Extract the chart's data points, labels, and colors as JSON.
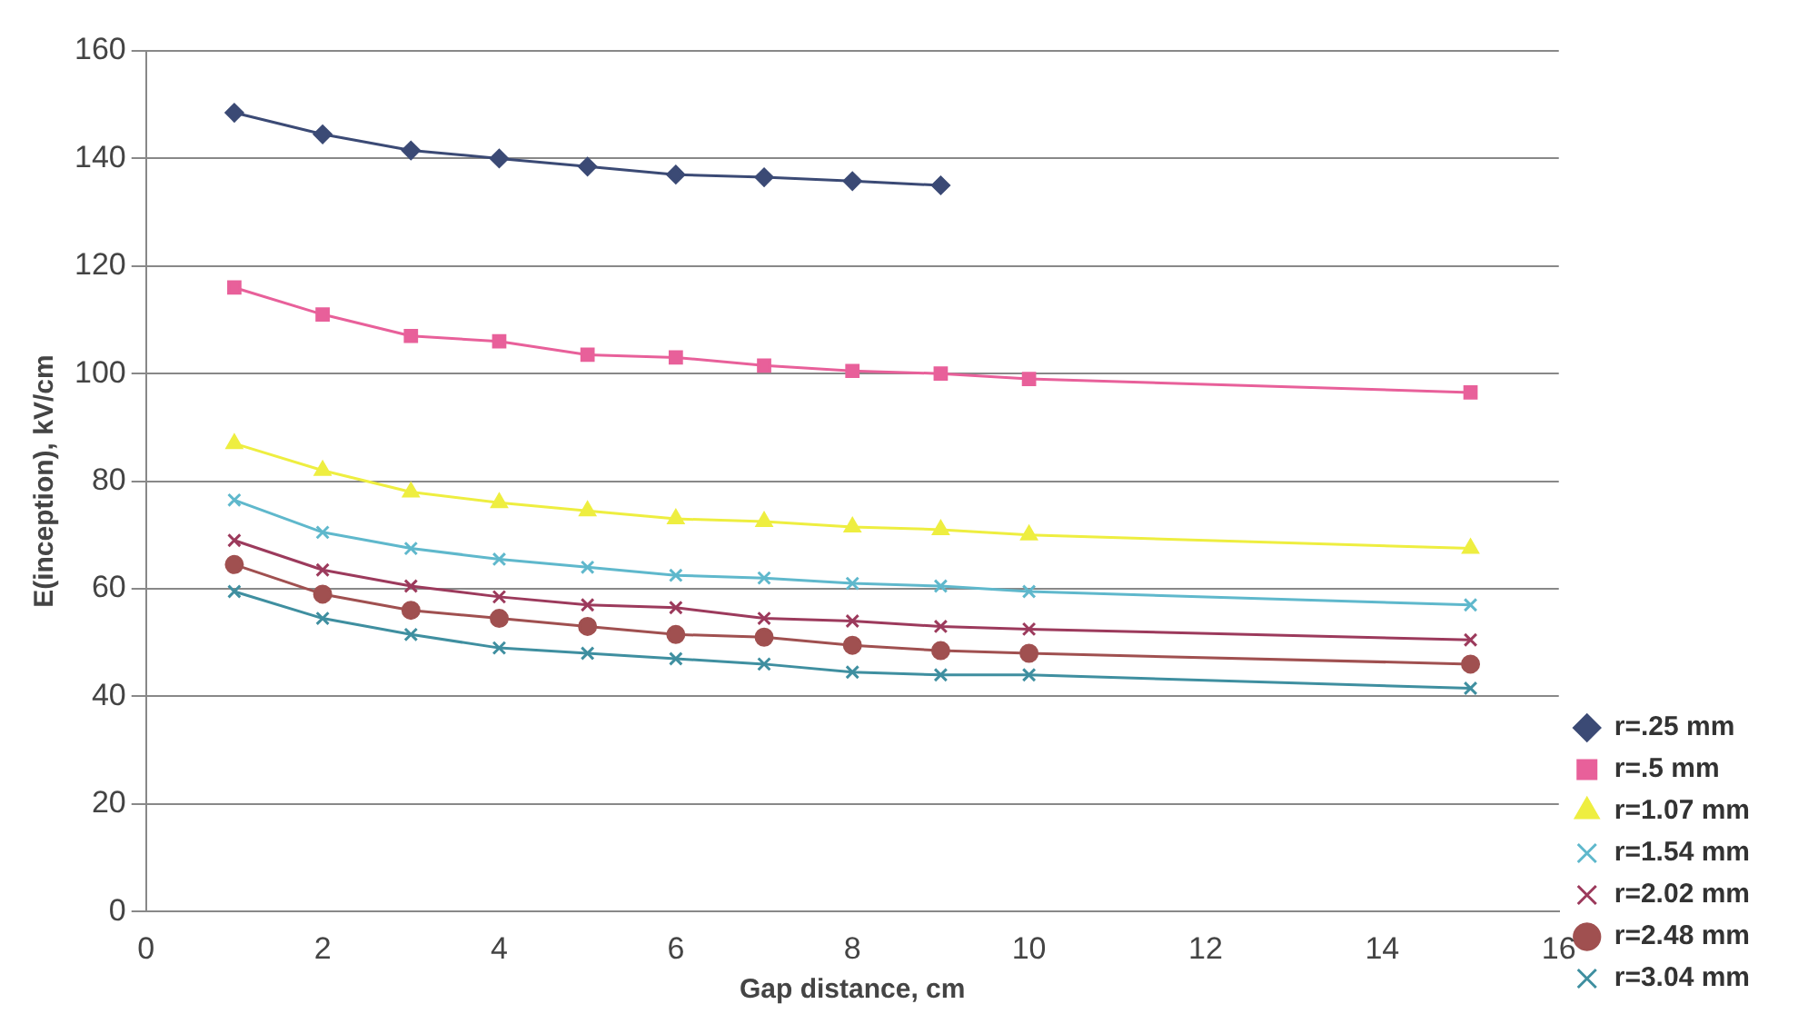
{
  "chart_data": {
    "type": "line",
    "xlabel": "Gap distance, cm",
    "ylabel": "E(inception), kV/cm",
    "xlim": [
      0,
      16
    ],
    "xticks": [
      0,
      2,
      4,
      6,
      8,
      10,
      12,
      14,
      16
    ],
    "ylim": [
      0,
      160
    ],
    "yticks": [
      0,
      20,
      40,
      60,
      80,
      100,
      120,
      140,
      160
    ],
    "grid": "y",
    "legend": "right",
    "line_style": "solid",
    "series": [
      {
        "name": "r=.25 mm",
        "color": "#3b4a75",
        "marker": "diamond",
        "x": [
          1,
          2,
          3,
          4,
          5,
          6,
          7,
          8,
          9
        ],
        "values": [
          148.5,
          144.5,
          141.5,
          140,
          138.5,
          137,
          136.5,
          135.8,
          135
        ]
      },
      {
        "name": "r=.5 mm",
        "color": "#e8609a",
        "marker": "square",
        "x": [
          1,
          2,
          3,
          4,
          5,
          6,
          7,
          8,
          9,
          10,
          15
        ],
        "values": [
          116,
          111,
          107,
          106,
          103.5,
          103,
          101.5,
          100.5,
          100,
          99,
          96.5
        ]
      },
      {
        "name": "r=1.07 mm",
        "color": "#eeee40",
        "marker": "triangle",
        "x": [
          1,
          2,
          3,
          4,
          5,
          6,
          7,
          8,
          9,
          10,
          15
        ],
        "values": [
          87,
          82,
          78,
          76,
          74.5,
          73,
          72.5,
          71.5,
          71,
          70,
          67.5
        ]
      },
      {
        "name": "r=1.54 mm",
        "color": "#5fb8cc",
        "marker": "cross",
        "x": [
          1,
          2,
          3,
          4,
          5,
          6,
          7,
          8,
          9,
          10,
          15
        ],
        "values": [
          76.5,
          70.5,
          67.5,
          65.5,
          64,
          62.5,
          62,
          61,
          60.5,
          59.5,
          57
        ]
      },
      {
        "name": "r=2.02 mm",
        "color": "#9c3a5c",
        "marker": "cross",
        "x": [
          1,
          2,
          3,
          4,
          5,
          6,
          7,
          8,
          9,
          10,
          15
        ],
        "values": [
          69,
          63.5,
          60.5,
          58.5,
          57,
          56.5,
          54.5,
          54,
          53,
          52.5,
          50.5
        ]
      },
      {
        "name": "r=2.48 mm",
        "color": "#a05050",
        "marker": "circle",
        "x": [
          1,
          2,
          3,
          4,
          5,
          6,
          7,
          8,
          9,
          10,
          15
        ],
        "values": [
          64.5,
          59,
          56,
          54.5,
          53,
          51.5,
          51,
          49.5,
          48.5,
          48,
          46
        ]
      },
      {
        "name": "r=3.04 mm",
        "color": "#3f8fa0",
        "marker": "cross",
        "x": [
          1,
          2,
          3,
          4,
          5,
          6,
          7,
          8,
          9,
          10,
          15
        ],
        "values": [
          59.5,
          54.5,
          51.5,
          49,
          48,
          47,
          46,
          44.5,
          44,
          44,
          41.5
        ]
      }
    ]
  }
}
